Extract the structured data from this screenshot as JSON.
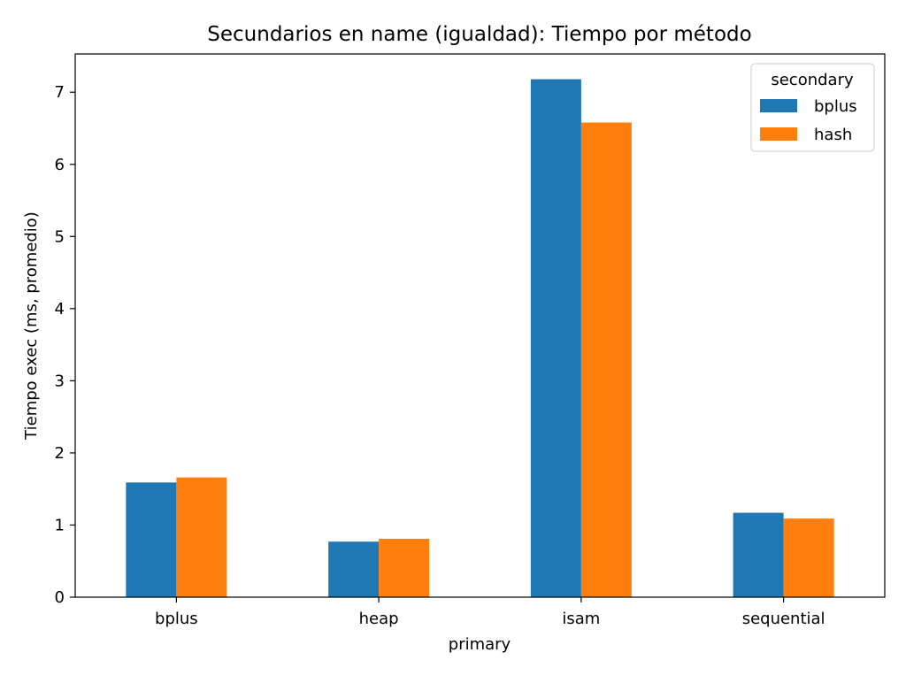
{
  "chart_data": {
    "type": "bar",
    "title": "Secundarios en name (igualdad): Tiempo por método",
    "xlabel": "primary",
    "ylabel": "Tiempo exec (ms, promedio)",
    "categories": [
      "bplus",
      "heap",
      "isam",
      "sequential"
    ],
    "series": [
      {
        "name": "bplus",
        "color": "#1f77b4",
        "values": [
          1.59,
          0.77,
          7.18,
          1.17
        ]
      },
      {
        "name": "hash",
        "color": "#ff7f0e",
        "values": [
          1.66,
          0.81,
          6.58,
          1.09
        ]
      }
    ],
    "ylim": [
      0,
      7.53
    ],
    "yticks": [
      0,
      1,
      2,
      3,
      4,
      5,
      6,
      7
    ],
    "grid": false,
    "legend": {
      "title": "secondary",
      "position": "top-right"
    }
  }
}
